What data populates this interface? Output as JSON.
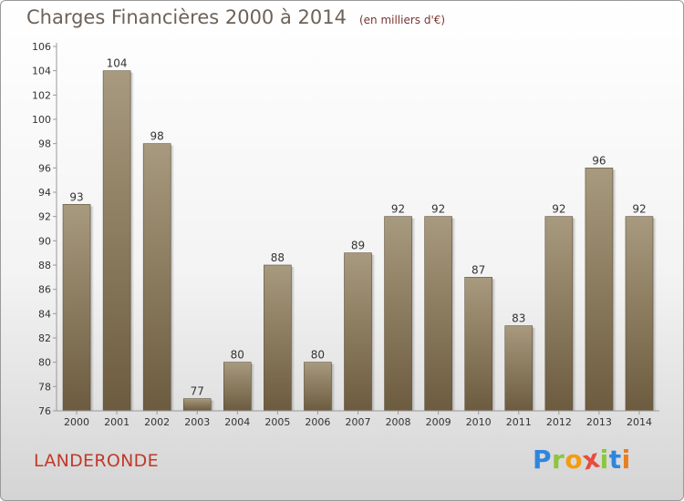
{
  "title": "Charges Financières 2000 à 2014",
  "unit": "(en milliers d'€)",
  "commune": "LANDERONDE",
  "brand": {
    "letters": [
      {
        "ch": "P",
        "color": "#2e86de"
      },
      {
        "ch": "r",
        "color": "#8cc63f"
      },
      {
        "ch": "o",
        "color": "#f39c12"
      },
      {
        "ch": "x",
        "color": "#e74c3c"
      },
      {
        "ch": "i",
        "color": "#8cc63f"
      },
      {
        "ch": "t",
        "color": "#2e86de"
      },
      {
        "ch": "i",
        "color": "#e67e22"
      }
    ]
  },
  "colors": {
    "bar_top": "#a89a7e",
    "bar_bottom": "#6c5b3f",
    "axis": "#999999",
    "text": "#333333"
  },
  "chart_data": {
    "type": "bar",
    "categories": [
      "2000",
      "2001",
      "2002",
      "2003",
      "2004",
      "2005",
      "2006",
      "2007",
      "2008",
      "2009",
      "2010",
      "2011",
      "2012",
      "2013",
      "2014"
    ],
    "values": [
      93,
      104,
      98,
      77,
      80,
      88,
      80,
      89,
      92,
      92,
      87,
      83,
      92,
      96,
      92
    ],
    "ylim": [
      76,
      106
    ],
    "yticks": [
      76,
      78,
      80,
      82,
      84,
      86,
      88,
      90,
      92,
      94,
      96,
      98,
      100,
      102,
      104,
      106
    ],
    "grid": false
  }
}
